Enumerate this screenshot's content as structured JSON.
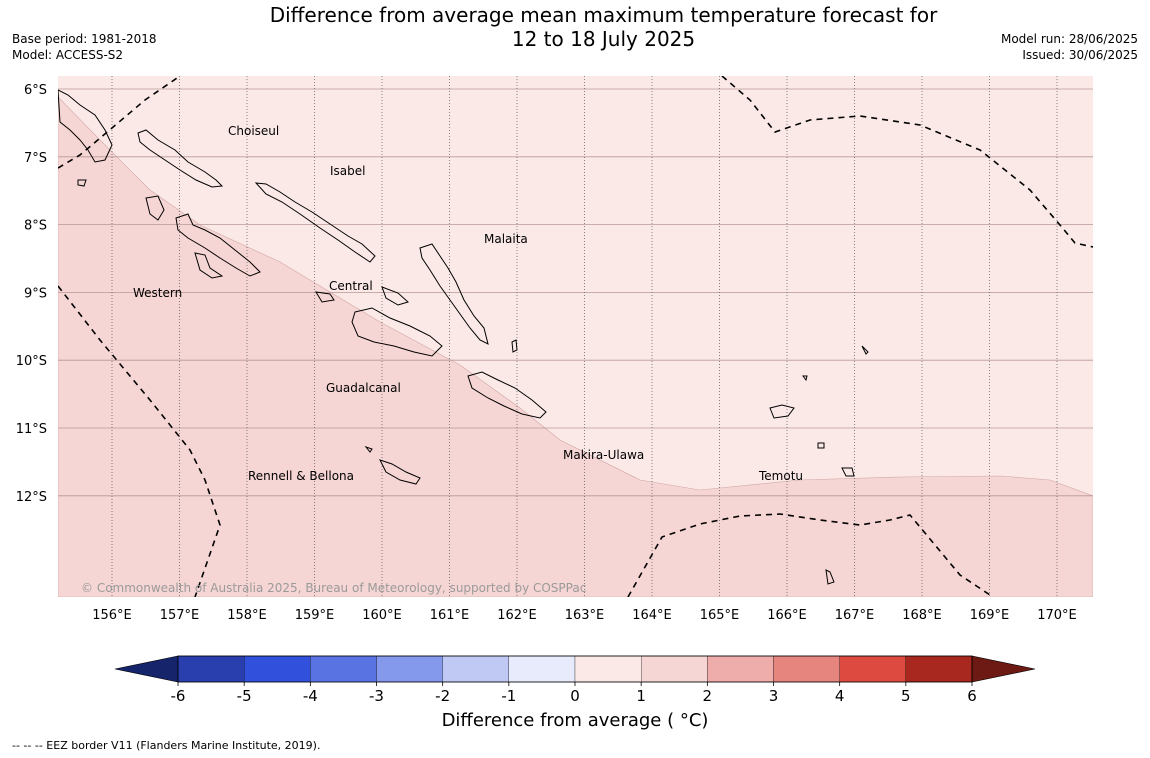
{
  "title": {
    "line1": "Difference from average mean maximum temperature forecast for",
    "line2": "12 to 18 July 2025"
  },
  "meta": {
    "base_period": "Base period: 1981-2018",
    "model": "Model: ACCESS-S2",
    "model_run": "Model run: 28/06/2025",
    "issued": "Issued: 30/06/2025"
  },
  "map": {
    "lat_labels": [
      "6°S",
      "7°S",
      "8°S",
      "9°S",
      "10°S",
      "11°S",
      "12°S"
    ],
    "lon_labels": [
      "156°E",
      "157°E",
      "158°E",
      "159°E",
      "160°E",
      "161°E",
      "162°E",
      "163°E",
      "164°E",
      "165°E",
      "166°E",
      "167°E",
      "168°E",
      "169°E",
      "170°E"
    ],
    "regions": {
      "choiseul": "Choiseul",
      "isabel": "Isabel",
      "malaita": "Malaita",
      "western": "Western",
      "central": "Central",
      "guadalcanal": "Guadalcanal",
      "makira_ulawa": "Makira-Ulawa",
      "temotu": "Temotu",
      "rennell_bellona": "Rennell & Bellona"
    },
    "copyright": "© Commonwealth of Australia 2025, Bureau of Meteorology, supported by COSPPac",
    "zone_colors": {
      "range_0_1": "#fbe9e8",
      "range_1_2": "#f6d6d4"
    }
  },
  "colorbar": {
    "ticks": [
      "-6",
      "-5",
      "-4",
      "-3",
      "-2",
      "-1",
      "0",
      "1",
      "2",
      "3",
      "4",
      "5",
      "6"
    ],
    "colors": [
      "#16246b",
      "#2a3fae",
      "#3151dc",
      "#5a73e3",
      "#8498ec",
      "#c0c8f4",
      "#e8ebfc",
      "#fbe9e8",
      "#f6d6d4",
      "#eeadaa",
      "#e6847e",
      "#dd4a40",
      "#a82820",
      "#6e1a14"
    ],
    "label": "Difference from average ( °C)"
  },
  "footnote": "--  --  -- EEZ border V11 (Flanders Marine Institute, 2019)."
}
